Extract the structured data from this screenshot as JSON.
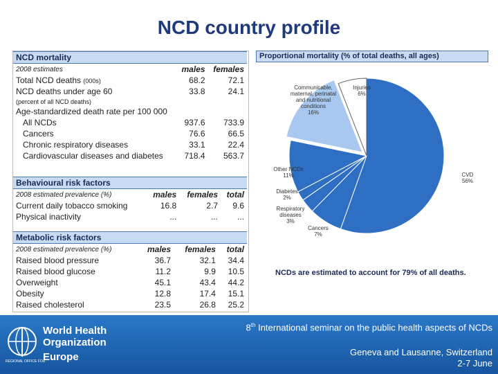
{
  "title": "NCD country profile",
  "tables": [
    {
      "title": "NCD mortality",
      "columns": [
        "2008 estimates",
        "males",
        "females"
      ],
      "rows": [
        {
          "label": "Total NCD deaths",
          "note": "(000s)",
          "values": [
            "68.2",
            "72.1"
          ]
        },
        {
          "label": "NCD deaths under age 60",
          "values": [
            "33.8",
            "24.1"
          ]
        },
        {
          "label": "(percent of all NCD deaths)",
          "values": []
        },
        {
          "label": "Age-standardized death rate per 100 000",
          "values": []
        },
        {
          "label": "All NCDs",
          "values": [
            "937.6",
            "733.9"
          ]
        },
        {
          "label": "Cancers",
          "values": [
            "76.6",
            "66.5"
          ]
        },
        {
          "label": "Chronic respiratory diseases",
          "values": [
            "33.1",
            "22.4"
          ]
        },
        {
          "label": "Cardiovascular diseases and diabetes",
          "values": [
            "718.4",
            "563.7"
          ]
        }
      ]
    },
    {
      "title": "Behavioural risk factors",
      "columns": [
        "2008 estimated prevalence (%)",
        "males",
        "females",
        "total"
      ],
      "rows": [
        {
          "label": "Current daily tobacco smoking",
          "values": [
            "16.8",
            "2.7",
            "9.6"
          ]
        },
        {
          "label": "Physical inactivity",
          "values": [
            "...",
            "...",
            "..."
          ]
        }
      ]
    },
    {
      "title": "Metabolic risk factors",
      "columns": [
        "2008 estimated prevalence (%)",
        "males",
        "females",
        "total"
      ],
      "rows": [
        {
          "label": "Raised blood pressure",
          "values": [
            "36.7",
            "32.1",
            "34.4"
          ]
        },
        {
          "label": "Raised blood glucose",
          "values": [
            "11.2",
            "9.9",
            "10.5"
          ]
        },
        {
          "label": "Overweight",
          "values": [
            "45.1",
            "43.4",
            "44.2"
          ]
        },
        {
          "label": "Obesity",
          "values": [
            "12.8",
            "17.4",
            "15.1"
          ]
        },
        {
          "label": "Raised cholesterol",
          "values": [
            "23.5",
            "26.8",
            "25.2"
          ]
        }
      ]
    }
  ],
  "chart_data": {
    "type": "pie",
    "title": "Proportional mortality (% of total deaths, all ages)",
    "categories": [
      "CVD",
      "Cancers",
      "Respiratory diseases",
      "Diabetes",
      "Other NCDs",
      "Communicable, maternal, perinatal and nutritional conditions",
      "Injuries"
    ],
    "values": [
      56,
      7,
      3,
      2,
      11,
      16,
      6
    ],
    "value_labels": [
      "56%",
      "7%",
      "3%",
      "2%",
      "11%",
      "16%",
      "6%"
    ],
    "colors": [
      "#2e6fc4",
      "#2e6fc4",
      "#2e6fc4",
      "#2e6fc4",
      "#2e6fc4",
      "#a8c8ef",
      "#ffffff"
    ],
    "note": "NCDs are estimated to account for 79% of all deaths."
  },
  "footer": {
    "seminar_number": "8",
    "seminar_suffix": "th",
    "seminar": "International seminar on the public health aspects of NCDs",
    "place": "Geneva and Lausanne, Switzerland",
    "dates": "2-7 June",
    "logo": {
      "name": "World Health Organization",
      "region_prefix": "REGIONAL OFFICE FOR",
      "region": "Europe"
    }
  }
}
